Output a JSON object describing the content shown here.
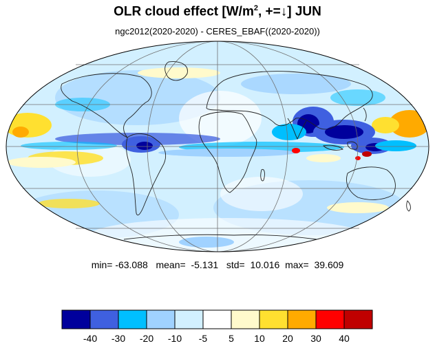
{
  "title": {
    "main": "OLR cloud effect [W/m",
    "sup": "2",
    "rest": ", +=↓]  JUN"
  },
  "subtitle": "ngc2012(2020-2020) - CERES_EBAF((2020-2020))",
  "stats": {
    "min_label": "min=",
    "min": "-63.088",
    "mean_label": "mean=",
    "mean": "-5.131",
    "std_label": "std=",
    "std": "10.016",
    "max_label": "max=",
    "max": "39.609"
  },
  "colorbar": {
    "colors": [
      "#00009c",
      "#3f60e0",
      "#00bfff",
      "#a0d2ff",
      "#d2f0ff",
      "#ffffff",
      "#fffacc",
      "#ffe030",
      "#ffaa00",
      "#ff0000",
      "#c00000"
    ],
    "tick_labels": [
      "-40",
      "-30",
      "-20",
      "-10",
      "-5",
      "5",
      "10",
      "20",
      "30",
      "40"
    ]
  },
  "map": {
    "projection": "mollweide"
  }
}
